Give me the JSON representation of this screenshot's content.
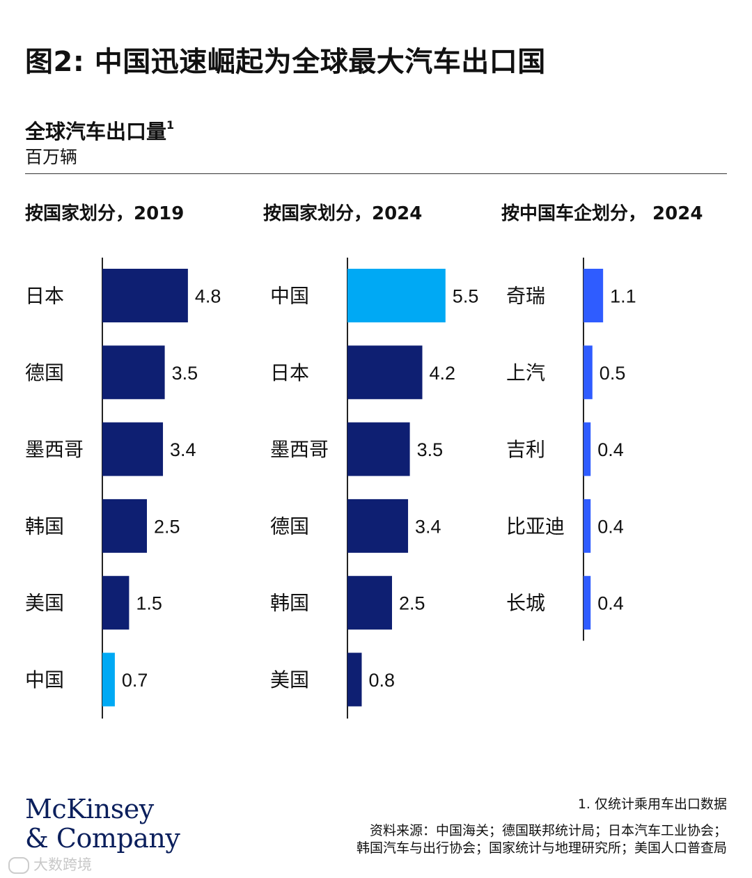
{
  "header": {
    "title": "图2: 中国迅速崛起为全球最大汽车出口国",
    "subtitle": "全球汽车出口量",
    "subtitle_sup": "1",
    "unit": "百万辆"
  },
  "colors": {
    "dark_bar": "#0e1f72",
    "china_bar": "#00a9f4",
    "company_bar": "#2f5cff",
    "axis": "#222222"
  },
  "chart_data": [
    {
      "type": "bar",
      "orientation": "horizontal",
      "title": "按国家划分，2019",
      "categories": [
        "日本",
        "德国",
        "墨西哥",
        "韩国",
        "美国",
        "中国"
      ],
      "values": [
        4.8,
        3.5,
        3.4,
        2.5,
        1.5,
        0.7
      ],
      "labels": [
        "4.8",
        "3.5",
        "3.4",
        "2.5",
        "1.5",
        "0.7"
      ],
      "highlight": "中国",
      "unit": "百万辆"
    },
    {
      "type": "bar",
      "orientation": "horizontal",
      "title": "按国家划分，2024",
      "categories": [
        "中国",
        "日本",
        "墨西哥",
        "德国",
        "韩国",
        "美国"
      ],
      "values": [
        5.5,
        4.2,
        3.5,
        3.4,
        2.5,
        0.8
      ],
      "labels": [
        "5.5",
        "4.2",
        "3.5",
        "3.4",
        "2.5",
        "0.8"
      ],
      "highlight": "中国",
      "unit": "百万辆"
    },
    {
      "type": "bar",
      "orientation": "horizontal",
      "title": "按中国车企划分， 2024",
      "categories": [
        "奇瑞",
        "上汽",
        "吉利",
        "比亚迪",
        "长城"
      ],
      "values": [
        1.1,
        0.5,
        0.4,
        0.4,
        0.4
      ],
      "labels": [
        "1.1",
        "0.5",
        "0.4",
        "0.4",
        "0.4"
      ],
      "unit": "百万辆"
    }
  ],
  "footer": {
    "note": "1.   仅统计乘用车出口数据",
    "source_line1": "资料来源：中国海关；德国联邦统计局；日本汽车工业协会；",
    "source_line2": "韩国汽车与出行协会；国家统计与地理研究所；美国人口普查局",
    "logo_line1": "McKinsey",
    "logo_line2": "& Company",
    "watermark": "大数跨境"
  }
}
